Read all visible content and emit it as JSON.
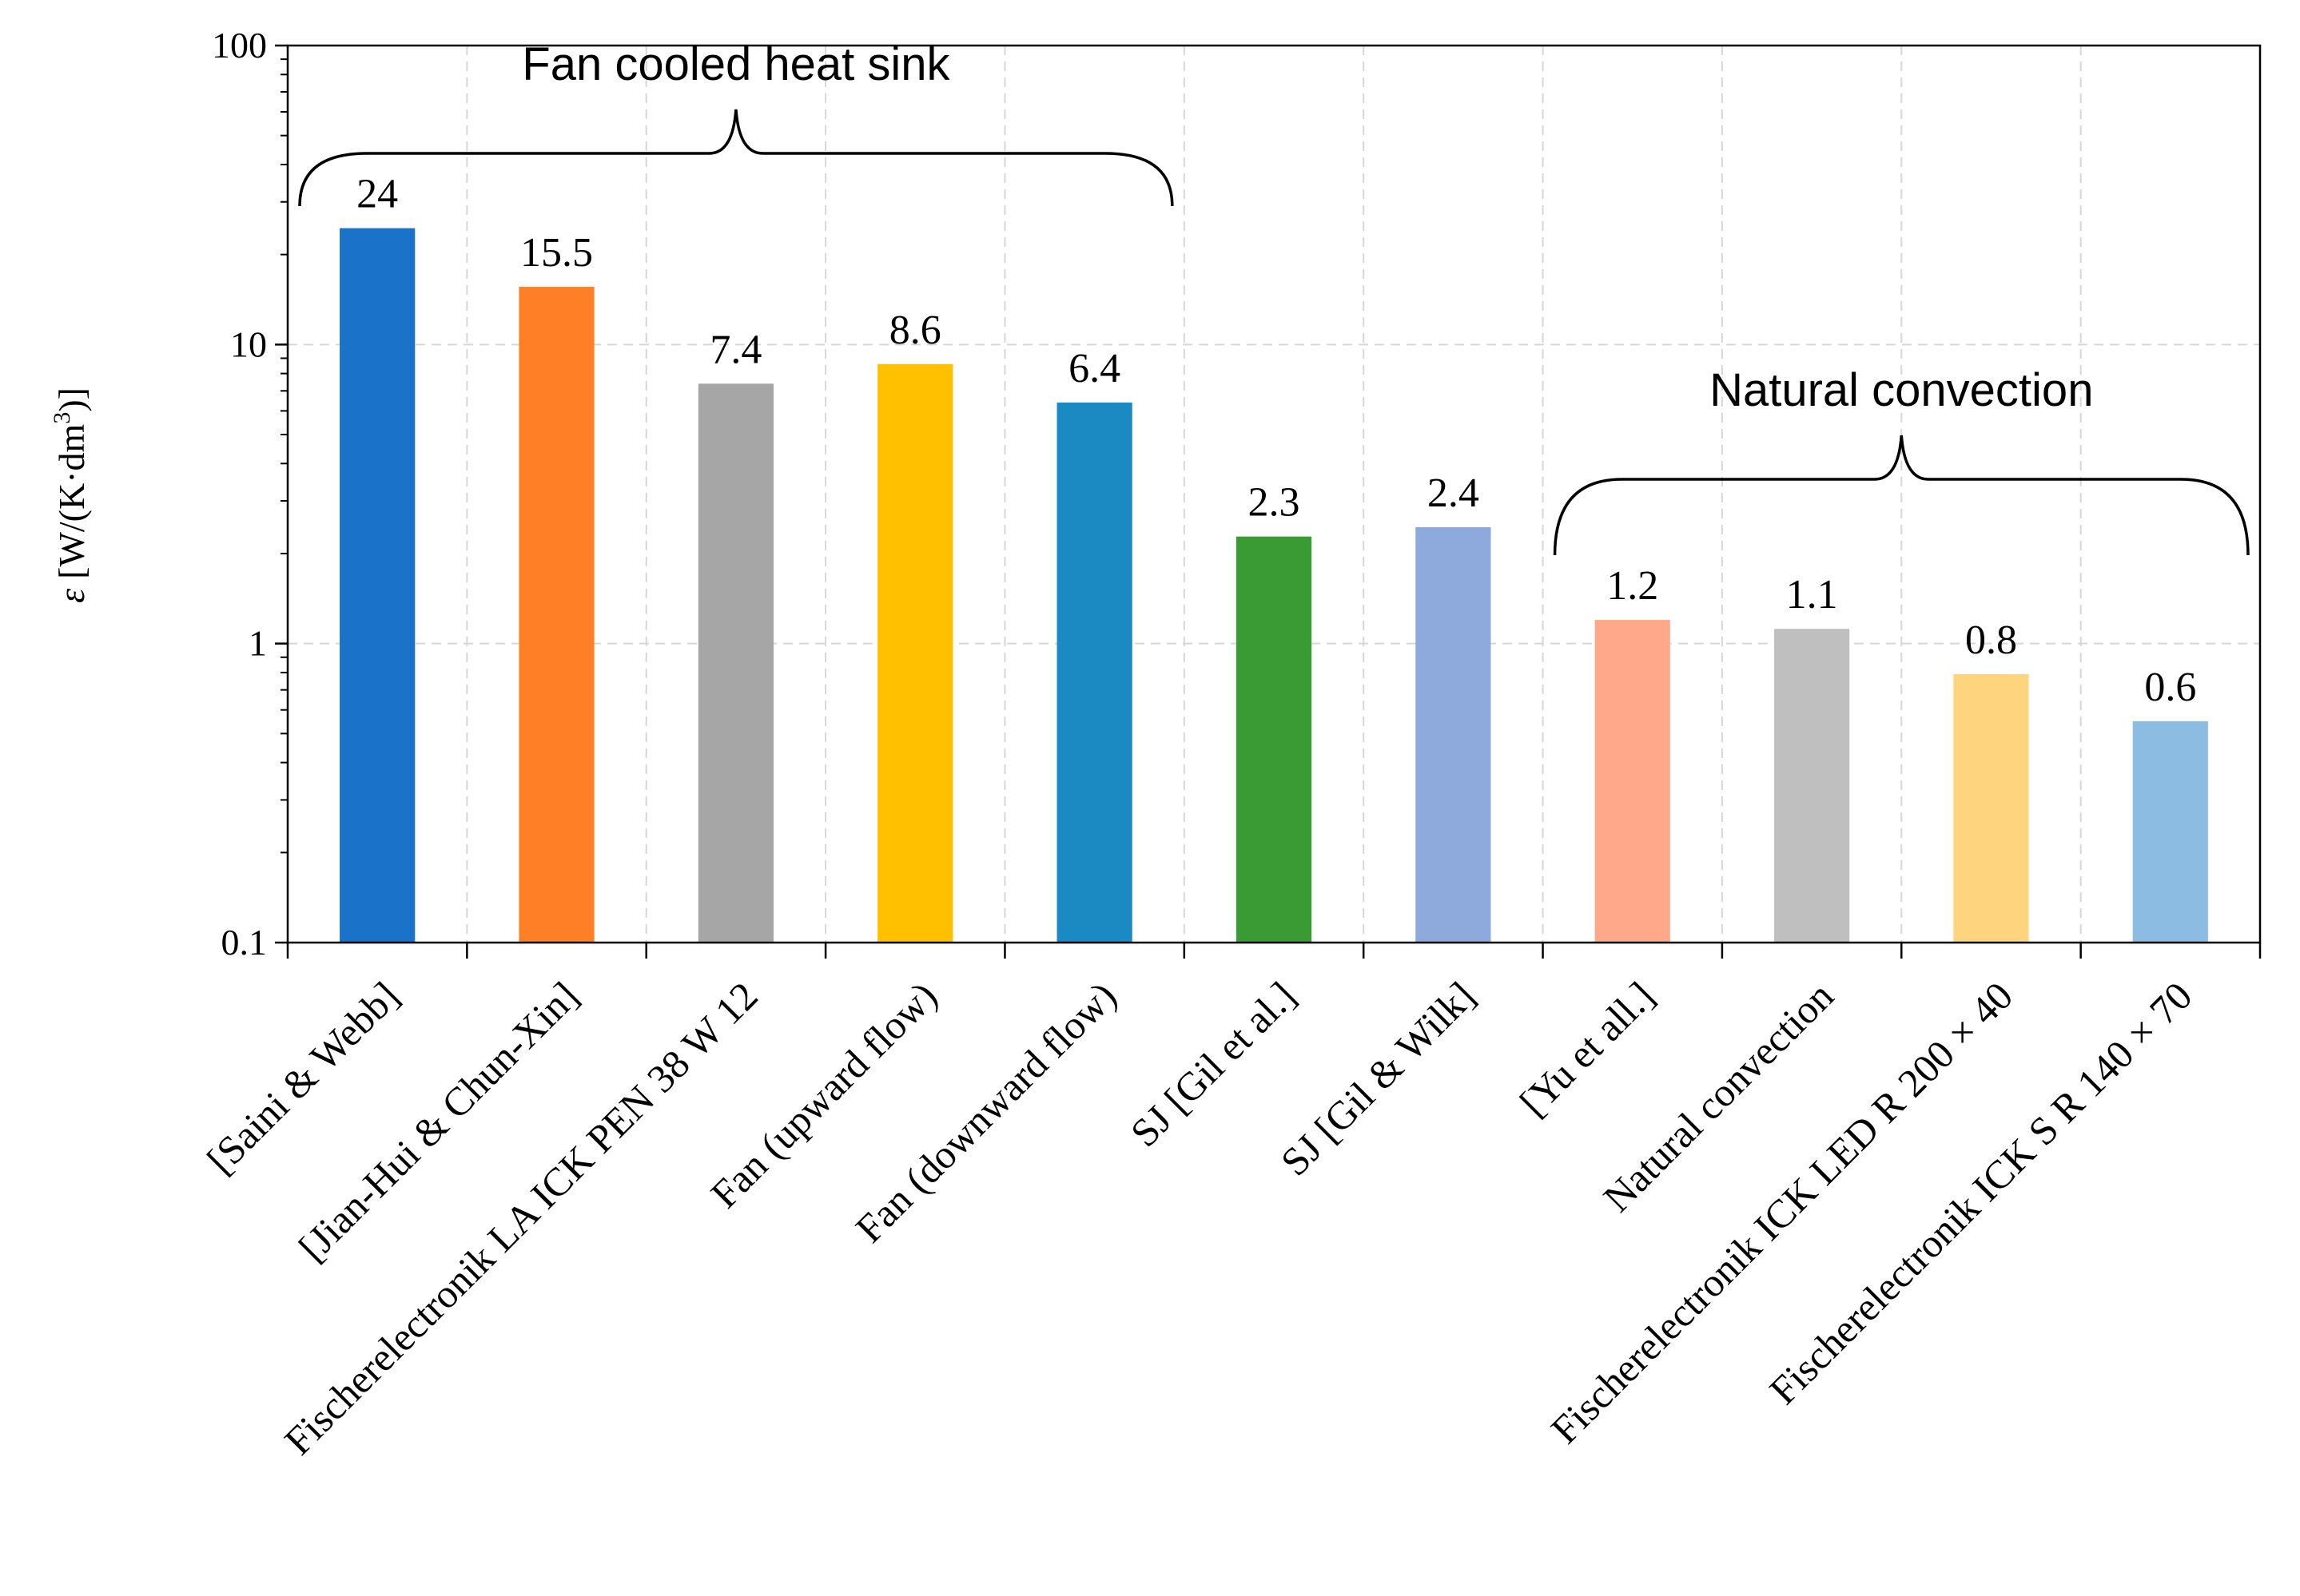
{
  "chart_data": {
    "type": "bar",
    "title": "",
    "xlabel": "",
    "ylabel": {
      "symbol": "ε",
      "unit": "[W/(K·dm",
      "superscript": "3",
      "close": ")]"
    },
    "yscale": "log",
    "ylim": [
      0.1,
      100
    ],
    "ytick_values": [
      0.1,
      1,
      10,
      100
    ],
    "ytick_labels": [
      "0.1",
      "1",
      "10",
      "100"
    ],
    "grid": true,
    "categories": [
      "[Saini & Webb]",
      "[Jian-Hui & Chun-Xin]",
      "Fischerelectronik LA ICK PEN 38 W 12",
      "Fan (upward flow)",
      "Fan (downward flow)",
      "SJ [Gil et al.]",
      "SJ [Gil & Wilk]",
      "[Yu et all.]",
      "Natural convection",
      "Fischerelectronik ICK LED R 200 × 40",
      "Fischerelectronik ICK S R 140 × 70"
    ],
    "values": [
      24,
      15.5,
      7.4,
      8.6,
      6.4,
      2.3,
      2.4,
      1.2,
      1.1,
      0.8,
      0.6
    ],
    "plotted_values": [
      24.5,
      15.6,
      7.4,
      8.6,
      6.4,
      2.28,
      2.45,
      1.2,
      1.12,
      0.79,
      0.55
    ],
    "value_labels": [
      "24",
      "15.5",
      "7.4",
      "8.6",
      "6.4",
      "2.3",
      "2.4",
      "1.2",
      "1.1",
      "0.8",
      "0.6"
    ],
    "colors": [
      "#1A72C9",
      "#FF7F27",
      "#A6A6A6",
      "#FFC000",
      "#1B8AC2",
      "#3A9A34",
      "#8EA9DB",
      "#FFA98A",
      "#BFBFBF",
      "#FFD47F",
      "#8DBCE3"
    ],
    "annotations": [
      {
        "text": "Fan cooled heat sink",
        "from_category": 0,
        "to_category": 4
      },
      {
        "text": "Natural convection",
        "from_category": 7,
        "to_category": 10
      }
    ]
  }
}
